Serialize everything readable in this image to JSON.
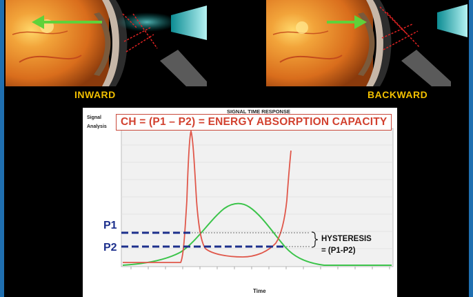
{
  "captions": {
    "left": "INWARD",
    "right": "BACKWARD"
  },
  "chart": {
    "header": "SIGNAL TIME RESPONSE",
    "side_label_1": "Signal",
    "side_label_2": "Analysis",
    "formula": "CH = (P1 – P2) = ENERGY ABSORPTION CAPACITY",
    "x_axis_label": "Time",
    "p1_label": "P1",
    "p2_label": "P2",
    "hysteresis_label": "HYSTERESIS",
    "hysteresis_formula": "= (P1-P2)"
  },
  "colors": {
    "arrow": "#5fd23a",
    "caption": "#f2c000",
    "pressure_curve": "#e0574a",
    "applanation_curve": "#3bc44a",
    "dashed_lines": "#1c2f8c",
    "frame": "#1f6fb0"
  }
}
